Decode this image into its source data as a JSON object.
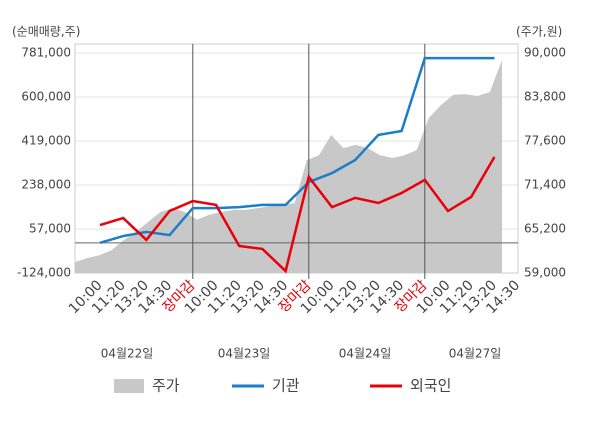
{
  "chart_data": {
    "type": "combo",
    "y_axis_label": "(순매매량,주)",
    "y2_axis_label": "(주가,원)",
    "categories": [
      "10:00",
      "11:20",
      "13:20",
      "14:30",
      "장마감",
      "10:00",
      "11:20",
      "13:20",
      "14:30",
      "장마감",
      "10:00",
      "11:20",
      "13:20",
      "14:30",
      "장마감",
      "10:00",
      "11:20",
      "13:20",
      "14:30"
    ],
    "x_dividers": [
      4,
      9,
      14
    ],
    "divider_label_color": "#e8000b",
    "date_labels": [
      "04월22일",
      "04월23일",
      "04월24일",
      "04월27일"
    ],
    "ylim": [
      -124000,
      818000
    ],
    "yticks": [
      {
        "value": -124000,
        "label": "-124,000"
      },
      {
        "value": 57000,
        "label": "57,000"
      },
      {
        "value": 238000,
        "label": "238,000"
      },
      {
        "value": 419000,
        "label": "419,000"
      },
      {
        "value": 600000,
        "label": "600,000"
      },
      {
        "value": 781000,
        "label": "781,000"
      }
    ],
    "y2lim": [
      59000,
      91270
    ],
    "y2ticks": [
      {
        "value": 59000,
        "label": "59,000"
      },
      {
        "value": 65200,
        "label": "65,200"
      },
      {
        "value": 71400,
        "label": "71,400"
      },
      {
        "value": 77600,
        "label": "77,600"
      },
      {
        "value": 83800,
        "label": "83,800"
      },
      {
        "value": 90000,
        "label": "90,000"
      }
    ],
    "grid": true,
    "price": {
      "name": "주가",
      "color": "#c8c8c8",
      "axis": "y2",
      "values": [
        60550,
        61100,
        61500,
        62200,
        63650,
        64800,
        66200,
        67600,
        68150,
        67600,
        66500,
        67200,
        67600,
        67900,
        67900,
        68150,
        68450,
        68600,
        68850,
        74900,
        75600,
        78450,
        76600,
        77050,
        76600,
        75600,
        75200,
        75600,
        76300,
        80850,
        82650,
        84100,
        84200,
        83950,
        84500,
        89000
      ]
    },
    "series": [
      {
        "name": "기관",
        "color": "#1a7fc8",
        "values": [
          0,
          28000,
          45000,
          32000,
          143000,
          143000,
          147000,
          156000,
          156000,
          250000,
          287000,
          341000,
          444000,
          460000,
          760000,
          760000,
          760000,
          760000,
          null
        ]
      },
      {
        "name": "외국인",
        "color": "#e8000b",
        "values": [
          73000,
          102000,
          12000,
          131000,
          172000,
          156000,
          -13000,
          -25000,
          -116000,
          271000,
          147000,
          185000,
          164000,
          205000,
          259000,
          131000,
          189000,
          353000,
          null
        ]
      }
    ]
  }
}
